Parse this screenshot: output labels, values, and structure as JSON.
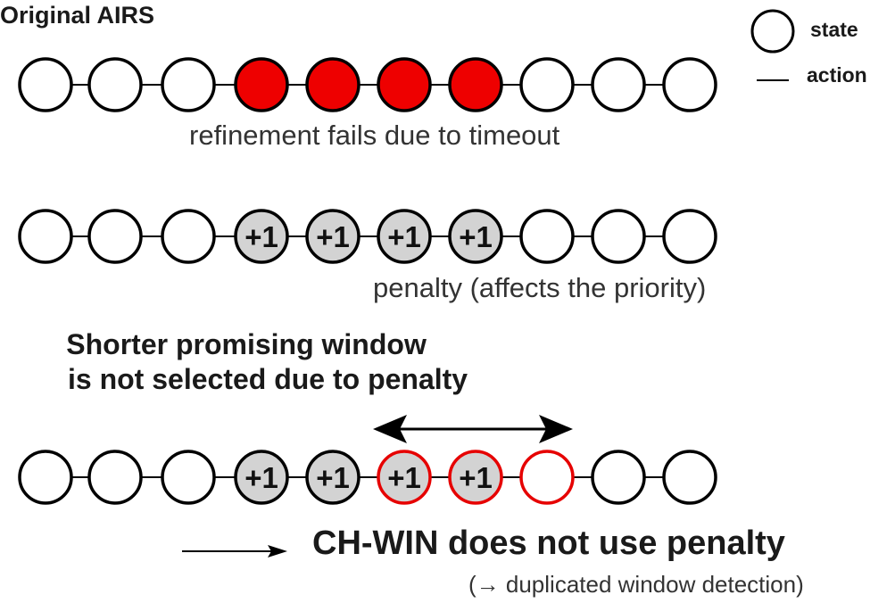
{
  "title": "Original AIRS",
  "legend": {
    "state_label": "state",
    "action_label": "action"
  },
  "rows": [
    {
      "caption": "refinement fails due to timeout",
      "states": [
        {
          "fill": "white",
          "border": "black",
          "label": ""
        },
        {
          "fill": "white",
          "border": "black",
          "label": ""
        },
        {
          "fill": "white",
          "border": "black",
          "label": ""
        },
        {
          "fill": "red",
          "border": "black",
          "label": ""
        },
        {
          "fill": "red",
          "border": "black",
          "label": ""
        },
        {
          "fill": "red",
          "border": "black",
          "label": ""
        },
        {
          "fill": "red",
          "border": "black",
          "label": ""
        },
        {
          "fill": "white",
          "border": "black",
          "label": ""
        },
        {
          "fill": "white",
          "border": "black",
          "label": ""
        },
        {
          "fill": "white",
          "border": "black",
          "label": ""
        }
      ]
    },
    {
      "caption": "penalty (affects the priority)",
      "states": [
        {
          "fill": "white",
          "border": "black",
          "label": ""
        },
        {
          "fill": "white",
          "border": "black",
          "label": ""
        },
        {
          "fill": "white",
          "border": "black",
          "label": ""
        },
        {
          "fill": "gray",
          "border": "black",
          "label": "+1"
        },
        {
          "fill": "gray",
          "border": "black",
          "label": "+1"
        },
        {
          "fill": "gray",
          "border": "black",
          "label": "+1"
        },
        {
          "fill": "gray",
          "border": "black",
          "label": "+1"
        },
        {
          "fill": "white",
          "border": "black",
          "label": ""
        },
        {
          "fill": "white",
          "border": "black",
          "label": ""
        },
        {
          "fill": "white",
          "border": "black",
          "label": ""
        }
      ]
    },
    {
      "heading_line1": "Shorter promising window",
      "heading_line2": "is not selected due to penalty",
      "states": [
        {
          "fill": "white",
          "border": "black",
          "label": ""
        },
        {
          "fill": "white",
          "border": "black",
          "label": ""
        },
        {
          "fill": "white",
          "border": "black",
          "label": ""
        },
        {
          "fill": "gray",
          "border": "black",
          "label": "+1"
        },
        {
          "fill": "gray",
          "border": "black",
          "label": "+1"
        },
        {
          "fill": "gray",
          "border": "red",
          "label": "+1"
        },
        {
          "fill": "gray",
          "border": "red",
          "label": "+1"
        },
        {
          "fill": "white",
          "border": "red",
          "label": ""
        },
        {
          "fill": "white",
          "border": "black",
          "label": ""
        },
        {
          "fill": "white",
          "border": "black",
          "label": ""
        }
      ]
    }
  ],
  "footer": {
    "main": "CH-WIN does not use penalty",
    "note": "(→ duplicated window detection)"
  },
  "colors": {
    "red": "#ee0000",
    "gray": "#d3d3d3",
    "red_border": "#e60000",
    "black": "#000000"
  }
}
